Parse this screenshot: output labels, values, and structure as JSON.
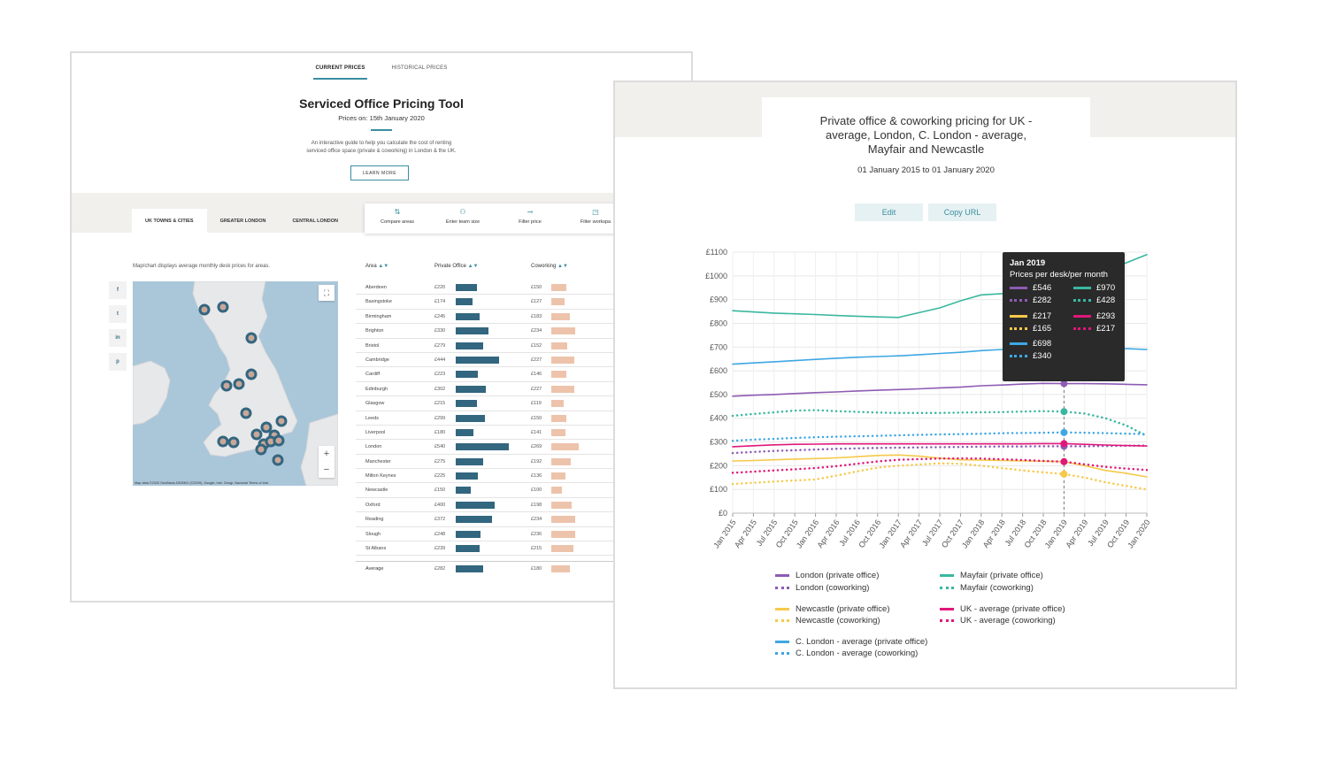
{
  "left": {
    "top_tabs": [
      "CURRENT PRICES",
      "HISTORICAL PRICES"
    ],
    "title": "Serviced Office Pricing Tool",
    "prices_on": "Prices on: 15th January 2020",
    "description_line1": "An interactive guide to help you calculate the cost of renting",
    "description_line2": "serviced office space (private & coworking) in London & the UK.",
    "learn_more": "LEARN MORE",
    "area_tabs": [
      "UK TOWNS & CITIES",
      "GREATER LONDON",
      "CENTRAL LONDON"
    ],
    "tools": [
      "Compare areas",
      "Enter team size",
      "Filter price",
      "Filter workspa"
    ],
    "map_caption": "Map/chart displays average monthly desk prices for areas.",
    "share": [
      "f",
      "t",
      "in",
      "p"
    ],
    "map_credit": "Map data ©2020 GeoBasis-DE/BKG (©2009), Google, Inst. Geogr. Nacional   Terms of Use",
    "columns": {
      "area": "Area",
      "private": "Private Office",
      "coworking": "Coworking"
    },
    "rows": [
      {
        "name": "Aberdeen",
        "private": "£220",
        "p": 220,
        "coworking": "£150",
        "c": 150
      },
      {
        "name": "Basingstoke",
        "private": "£174",
        "p": 174,
        "coworking": "£127",
        "c": 127
      },
      {
        "name": "Birmingham",
        "private": "£245",
        "p": 245,
        "coworking": "£183",
        "c": 183
      },
      {
        "name": "Brighton",
        "private": "£330",
        "p": 330,
        "coworking": "£234",
        "c": 234
      },
      {
        "name": "Bristol",
        "private": "£279",
        "p": 279,
        "coworking": "£152",
        "c": 152
      },
      {
        "name": "Cambridge",
        "private": "£444",
        "p": 444,
        "coworking": "£227",
        "c": 227
      },
      {
        "name": "Cardiff",
        "private": "£223",
        "p": 223,
        "coworking": "£146",
        "c": 146
      },
      {
        "name": "Edinburgh",
        "private": "£302",
        "p": 302,
        "coworking": "£227",
        "c": 227
      },
      {
        "name": "Glasgow",
        "private": "£215",
        "p": 215,
        "coworking": "£119",
        "c": 119
      },
      {
        "name": "Leeds",
        "private": "£299",
        "p": 299,
        "coworking": "£150",
        "c": 150
      },
      {
        "name": "Liverpool",
        "private": "£180",
        "p": 180,
        "coworking": "£141",
        "c": 141
      },
      {
        "name": "London",
        "private": "£540",
        "p": 540,
        "coworking": "£269",
        "c": 269
      },
      {
        "name": "Manchester",
        "private": "£275",
        "p": 275,
        "coworking": "£192",
        "c": 192
      },
      {
        "name": "Milton Keynes",
        "private": "£225",
        "p": 225,
        "coworking": "£136",
        "c": 136
      },
      {
        "name": "Newcastle",
        "private": "£150",
        "p": 150,
        "coworking": "£100",
        "c": 100
      },
      {
        "name": "Oxford",
        "private": "£400",
        "p": 400,
        "coworking": "£198",
        "c": 198
      },
      {
        "name": "Reading",
        "private": "£372",
        "p": 372,
        "coworking": "£234",
        "c": 234
      },
      {
        "name": "Slough",
        "private": "£248",
        "p": 248,
        "coworking": "£236",
        "c": 236
      },
      {
        "name": "St Albans",
        "private": "£239",
        "p": 239,
        "coworking": "£215",
        "c": 215
      }
    ],
    "average": {
      "name": "Average",
      "private": "£282",
      "p": 282,
      "coworking": "£180",
      "c": 180
    }
  },
  "right": {
    "title_line1": "Private office & coworking pricing for UK -",
    "title_line2": "average, London, C. London - average,",
    "title_line3": "Mayfair and Newcastle",
    "subtitle": "01 January 2015 to 01 January 2020",
    "edit": "Edit",
    "copy": "Copy URL",
    "tooltip": {
      "header": "Jan 2019",
      "sub": "Prices per desk/per month",
      "items": [
        {
          "label": "£546",
          "color": "#8e5bb4",
          "dotted": false
        },
        {
          "label": "£970",
          "color": "#3ab7a0",
          "dotted": false
        },
        {
          "label": "£282",
          "color": "#8e5bb4",
          "dotted": true
        },
        {
          "label": "£428",
          "color": "#3ab7a0",
          "dotted": true
        },
        {
          "label": "£217",
          "color": "#f6c949",
          "dotted": false
        },
        {
          "label": "£293",
          "color": "#e0177a",
          "dotted": false
        },
        {
          "label": "£165",
          "color": "#f6c949",
          "dotted": true
        },
        {
          "label": "£217",
          "color": "#e0177a",
          "dotted": true
        },
        {
          "label": "£698",
          "color": "#3ea7e4",
          "dotted": false
        },
        {
          "label": "£340",
          "color": "#3ea7e4",
          "dotted": true
        }
      ]
    }
  },
  "chart_data": {
    "type": "line",
    "title": "Private office & coworking pricing for UK - average, London, C. London - average, Mayfair and Newcastle",
    "subtitle": "01 January 2015 to 01 January 2020",
    "x": [
      "Jan 2015",
      "Apr 2015",
      "Jul 2015",
      "Oct 2015",
      "Jan 2016",
      "Apr 2016",
      "Jul 2016",
      "Oct 2016",
      "Jan 2017",
      "Apr 2017",
      "Jul 2017",
      "Oct 2017",
      "Jan 2018",
      "Apr 2018",
      "Jul 2018",
      "Oct 2018",
      "Jan 2019",
      "Apr 2019",
      "Jul 2019",
      "Oct 2019",
      "Jan 2020"
    ],
    "y_ticks": [
      "£0",
      "£100",
      "£200",
      "£300",
      "£400",
      "£500",
      "£600",
      "£700",
      "£800",
      "£900",
      "£1000",
      "£1100"
    ],
    "ylim": [
      0,
      1100
    ],
    "grid": true,
    "legend_position": "bottom",
    "series": [
      {
        "name": "London (private office)",
        "color": "#8e5bb4",
        "dotted": false,
        "values": [
          493,
          497,
          500,
          504,
          508,
          511,
          515,
          518,
          521,
          524,
          528,
          531,
          537,
          540,
          544,
          547,
          546,
          546,
          545,
          543,
          541
        ]
      },
      {
        "name": "London (coworking)",
        "color": "#8e5bb4",
        "dotted": true,
        "values": [
          253,
          258,
          262,
          265,
          268,
          271,
          273,
          275,
          276,
          277,
          278,
          279,
          280,
          281,
          281,
          282,
          282,
          282,
          283,
          284,
          285
        ]
      },
      {
        "name": "Mayfair (private office)",
        "color": "#3ab7a0",
        "dotted": false,
        "values": [
          853,
          848,
          843,
          840,
          837,
          833,
          830,
          827,
          825,
          845,
          865,
          895,
          920,
          925,
          930,
          945,
          970,
          990,
          1020,
          1055,
          1090
        ]
      },
      {
        "name": "Mayfair (coworking)",
        "color": "#3ab7a0",
        "dotted": true,
        "values": [
          410,
          418,
          425,
          432,
          434,
          430,
          427,
          424,
          422,
          422,
          422,
          424,
          425,
          426,
          428,
          430,
          428,
          420,
          400,
          370,
          325
        ]
      },
      {
        "name": "Newcastle (private office)",
        "color": "#f6c949",
        "dotted": false,
        "values": [
          220,
          222,
          225,
          228,
          230,
          233,
          238,
          243,
          245,
          240,
          232,
          225,
          224,
          222,
          220,
          219,
          217,
          200,
          180,
          168,
          153
        ]
      },
      {
        "name": "Newcastle (coworking)",
        "color": "#f6c949",
        "dotted": true,
        "values": [
          123,
          128,
          133,
          138,
          142,
          158,
          176,
          192,
          200,
          205,
          210,
          208,
          200,
          190,
          180,
          172,
          165,
          150,
          130,
          115,
          100
        ]
      },
      {
        "name": "UK - average (private office)",
        "color": "#e0177a",
        "dotted": false,
        "values": [
          280,
          284,
          288,
          290,
          291,
          292,
          292,
          292,
          292,
          292,
          292,
          292,
          292,
          292,
          292,
          293,
          293,
          290,
          287,
          285,
          283
        ]
      },
      {
        "name": "UK - average (coworking)",
        "color": "#e0177a",
        "dotted": true,
        "values": [
          170,
          175,
          180,
          185,
          190,
          198,
          208,
          218,
          225,
          228,
          230,
          231,
          230,
          227,
          224,
          220,
          217,
          206,
          195,
          188,
          182
        ]
      },
      {
        "name": "C. London - average (private office)",
        "color": "#3ea7e4",
        "dotted": false,
        "values": [
          628,
          633,
          638,
          643,
          648,
          653,
          657,
          660,
          663,
          668,
          673,
          678,
          685,
          690,
          694,
          697,
          698,
          697,
          695,
          693,
          690
        ]
      },
      {
        "name": "C. London - average (coworking)",
        "color": "#3ea7e4",
        "dotted": true,
        "values": [
          305,
          310,
          313,
          317,
          320,
          322,
          324,
          326,
          328,
          330,
          332,
          333,
          335,
          337,
          338,
          339,
          340,
          339,
          337,
          335,
          333
        ]
      }
    ],
    "tooltip_x": "Jan 2019"
  }
}
